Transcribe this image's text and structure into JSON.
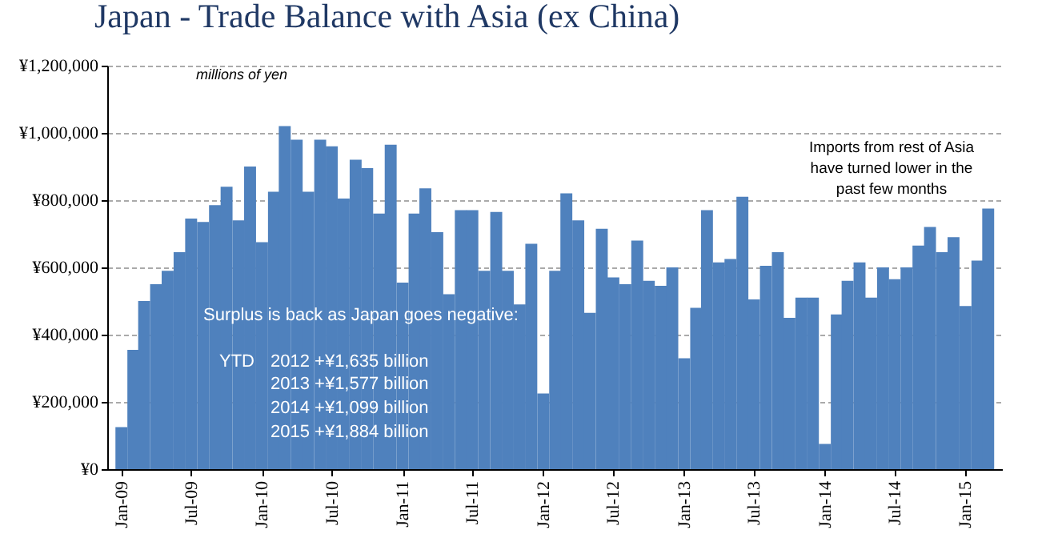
{
  "chart_data": {
    "type": "bar",
    "title": "Japan - Trade Balance with Asia (ex China)",
    "ylabel": "millions of yen",
    "x": [
      "2009-01",
      "2009-02",
      "2009-03",
      "2009-04",
      "2009-05",
      "2009-06",
      "2009-07",
      "2009-08",
      "2009-09",
      "2009-10",
      "2009-11",
      "2009-12",
      "2010-01",
      "2010-02",
      "2010-03",
      "2010-04",
      "2010-05",
      "2010-06",
      "2010-07",
      "2010-08",
      "2010-09",
      "2010-10",
      "2010-11",
      "2010-12",
      "2011-01",
      "2011-02",
      "2011-03",
      "2011-04",
      "2011-05",
      "2011-06",
      "2011-07",
      "2011-08",
      "2011-09",
      "2011-10",
      "2011-11",
      "2011-12",
      "2012-01",
      "2012-02",
      "2012-03",
      "2012-04",
      "2012-05",
      "2012-06",
      "2012-07",
      "2012-08",
      "2012-09",
      "2012-10",
      "2012-11",
      "2012-12",
      "2013-01",
      "2013-02",
      "2013-03",
      "2013-04",
      "2013-05",
      "2013-06",
      "2013-07",
      "2013-08",
      "2013-09",
      "2013-10",
      "2013-11",
      "2013-12",
      "2014-01",
      "2014-02",
      "2014-03",
      "2014-04",
      "2014-05",
      "2014-06",
      "2014-07",
      "2014-08",
      "2014-09",
      "2014-10",
      "2014-11",
      "2014-12",
      "2015-01",
      "2015-02",
      "2015-03"
    ],
    "series": [
      {
        "color": "#4f81bd",
        "values": [
          125000,
          355000,
          500000,
          550000,
          590000,
          645000,
          745000,
          735000,
          785000,
          840000,
          740000,
          900000,
          675000,
          825000,
          1020000,
          980000,
          825000,
          980000,
          960000,
          805000,
          920000,
          895000,
          760000,
          965000,
          555000,
          760000,
          835000,
          705000,
          520000,
          770000,
          770000,
          590000,
          765000,
          590000,
          490000,
          670000,
          225000,
          590000,
          820000,
          740000,
          465000,
          715000,
          570000,
          550000,
          680000,
          560000,
          545000,
          600000,
          330000,
          480000,
          770000,
          615000,
          625000,
          810000,
          505000,
          605000,
          645000,
          450000,
          510000,
          510000,
          75000,
          460000,
          560000,
          615000,
          510000,
          600000,
          565000,
          600000,
          665000,
          720000,
          645000,
          690000,
          485000,
          620000,
          775000
        ]
      }
    ],
    "xlim": [
      "2008-12-16",
      "2015-03-16"
    ],
    "xticks": [
      {
        "value": "2009-01",
        "label": "Jan-09"
      },
      {
        "value": "2009-07",
        "label": "Jul-09"
      },
      {
        "value": "2010-01",
        "label": "Jan-10"
      },
      {
        "value": "2010-07",
        "label": "Jul-10"
      },
      {
        "value": "2011-01",
        "label": "Jan-11"
      },
      {
        "value": "2011-07",
        "label": "Jul-11"
      },
      {
        "value": "2012-01",
        "label": "Jan-12"
      },
      {
        "value": "2012-07",
        "label": "Jul-12"
      },
      {
        "value": "2013-01",
        "label": "Jan-13"
      },
      {
        "value": "2013-07",
        "label": "Jul-13"
      },
      {
        "value": "2014-01",
        "label": "Jan-14"
      },
      {
        "value": "2014-07",
        "label": "Jul-14"
      },
      {
        "value": "2015-01",
        "label": "Jan-15"
      }
    ],
    "ylim": [
      0,
      1200000
    ],
    "yticks": [
      {
        "value": 0,
        "label": "¥0"
      },
      {
        "value": 200000,
        "label": "¥200,000"
      },
      {
        "value": 400000,
        "label": "¥400,000"
      },
      {
        "value": 600000,
        "label": "¥600,000"
      },
      {
        "value": 800000,
        "label": "¥800,000"
      },
      {
        "value": 1000000,
        "label": "¥1,000,000"
      },
      {
        "value": 1200000,
        "label": "¥1,200,000"
      }
    ],
    "grid": "y",
    "annotations": [
      "Surplus is back as Japan goes negative:",
      "YTD",
      "2012  +¥1,635 billion",
      "2013  +¥1,577 billion",
      "2014  +¥1,099 billion",
      "2015  +¥1,884 billion",
      "Imports from rest of Asia",
      "have turned lower in the",
      "past few months"
    ]
  }
}
